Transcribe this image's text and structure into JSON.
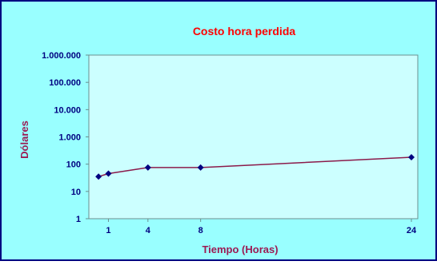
{
  "chart_data": {
    "type": "line",
    "title": "Costo hora perdida",
    "xlabel": "Tiempo (Horas)",
    "ylabel": "Dólares",
    "y_scale": "log",
    "ylim": [
      1,
      1000000
    ],
    "xlim": [
      0,
      24
    ],
    "x_ticks": [
      1,
      4,
      8,
      24
    ],
    "x_tick_labels": [
      "1",
      "4",
      "8",
      "24"
    ],
    "y_ticks": [
      1,
      10,
      100,
      1000,
      10000,
      100000,
      1000000
    ],
    "y_tick_labels": [
      "1",
      "10",
      "100",
      "1.000",
      "10.000",
      "100.000",
      "1.000.000"
    ],
    "grid": false,
    "legend": "none",
    "series": [
      {
        "x": [
          0.25,
          1,
          4,
          8,
          24
        ],
        "y": [
          35,
          45,
          75,
          75,
          180
        ]
      }
    ],
    "colors": {
      "title": "#ff0000",
      "axis_labels": "#9b1b53",
      "tick_labels": "#000080",
      "plot_area": "#ccffff",
      "chart_area": "#99ffff",
      "line": "#8b1a4a",
      "marker": "#000080"
    }
  }
}
